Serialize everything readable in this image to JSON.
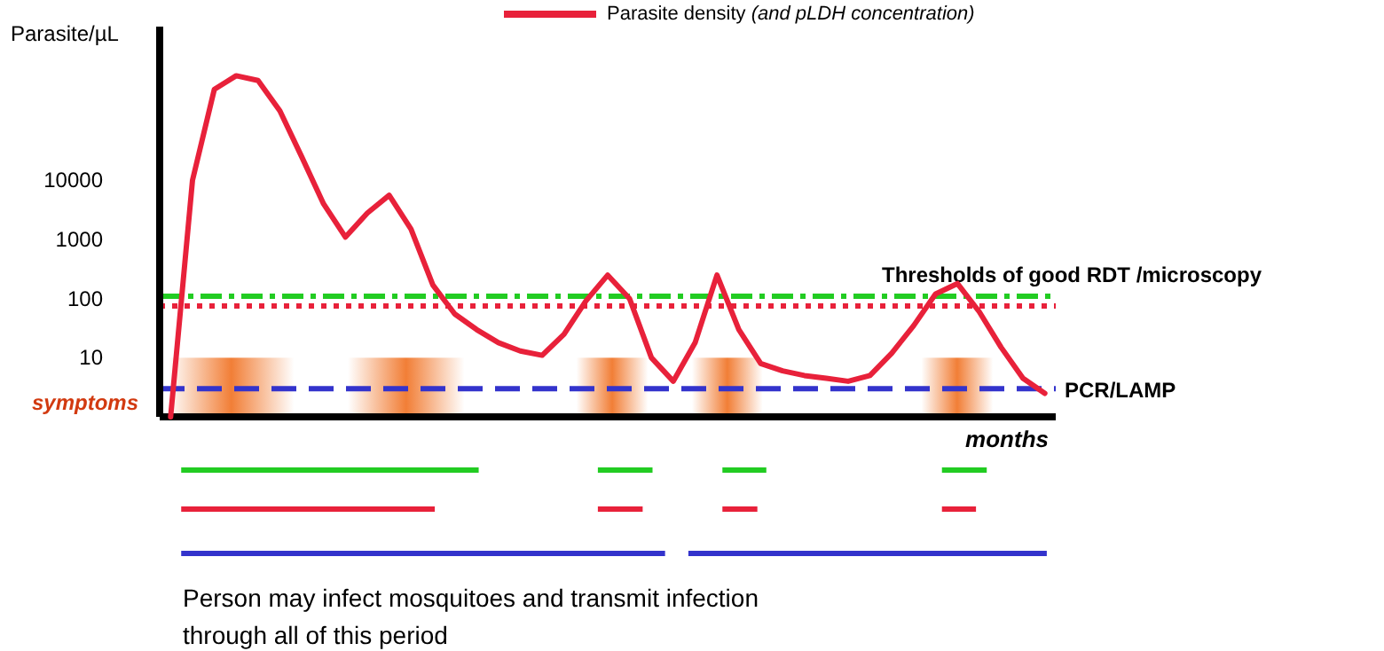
{
  "chart_data": {
    "type": "line",
    "xlabel": "months",
    "ylabel": "Parasite/µL",
    "log": "y",
    "ylim": [
      1,
      4000000
    ],
    "yticks": [
      10,
      100,
      1000,
      10000
    ],
    "tick_labels": "y",
    "legend": "top",
    "marker": "none",
    "line_style": "solid",
    "categories": [
      null,
      null,
      null,
      null,
      null,
      null,
      null,
      null,
      null,
      null,
      null,
      null,
      null,
      null,
      null,
      null,
      null,
      null,
      null,
      null,
      null,
      null,
      null,
      null,
      null,
      null,
      null,
      null,
      null,
      null,
      null,
      null,
      null,
      null,
      null,
      null,
      null,
      null,
      null,
      null,
      null
    ],
    "series": [
      {
        "name": "Parasite density (and pLDH concentration)",
        "color": "#e8213a",
        "values": [
          1,
          10000,
          347000,
          590000,
          490000,
          150000,
          25000,
          4000,
          1100,
          2800,
          5600,
          1500,
          170,
          55,
          30,
          18,
          13,
          11,
          25,
          91,
          250,
          100,
          10,
          4,
          18,
          250,
          30,
          8,
          6,
          5,
          4.5,
          4,
          5,
          12,
          35,
          120,
          180,
          60,
          15,
          4.5,
          2.5
        ]
      }
    ],
    "ref_lines": [
      {
        "axis": "y",
        "value": 110,
        "label": "Thresholds of good RDT /microscopy",
        "color": "#22cc22",
        "line_style": "dashdot"
      },
      {
        "axis": "y",
        "value": 75,
        "label": null,
        "color": "#e8213a",
        "line_style": "dotted"
      },
      {
        "axis": "y",
        "value": 3,
        "label": "PCR/LAMP",
        "color": "#3333cc",
        "line_style": "dashed"
      }
    ],
    "annotations": [
      "symptoms",
      "Person may infect mosquitoes and transmit infection through all of this period"
    ]
  }
}
